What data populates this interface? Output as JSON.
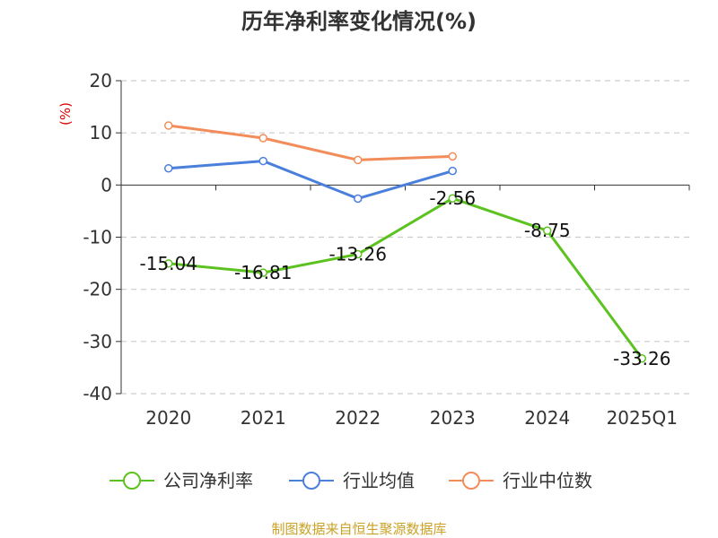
{
  "chart_data": {
    "type": "line",
    "title": "历年净利率变化情况(%)",
    "ylabel": "(%)",
    "categories": [
      "2020",
      "2021",
      "2022",
      "2023",
      "2024",
      "2025Q1"
    ],
    "ylim": [
      -40,
      20
    ],
    "yticks": [
      20,
      10,
      0,
      -10,
      -20,
      -30,
      -40
    ],
    "grid": true,
    "legend_position": "bottom",
    "series": [
      {
        "name": "公司净利率",
        "color": "#5cc21f",
        "values": [
          -15.04,
          -16.81,
          -13.26,
          -2.56,
          -8.75,
          -33.26
        ],
        "labels": [
          "-15.04",
          "-16.81",
          "-13.26",
          "-2.56",
          "-8.75",
          "-33.26"
        ]
      },
      {
        "name": "行业均值",
        "color": "#4a7fdc",
        "values": [
          3.2,
          4.6,
          -2.6,
          2.7,
          null,
          null
        ]
      },
      {
        "name": "行业中位数",
        "color": "#f28c5a",
        "values": [
          11.4,
          9.0,
          4.8,
          5.5,
          null,
          null
        ]
      }
    ]
  },
  "footer": {
    "source": "制图数据来自恒生聚源数据库"
  }
}
